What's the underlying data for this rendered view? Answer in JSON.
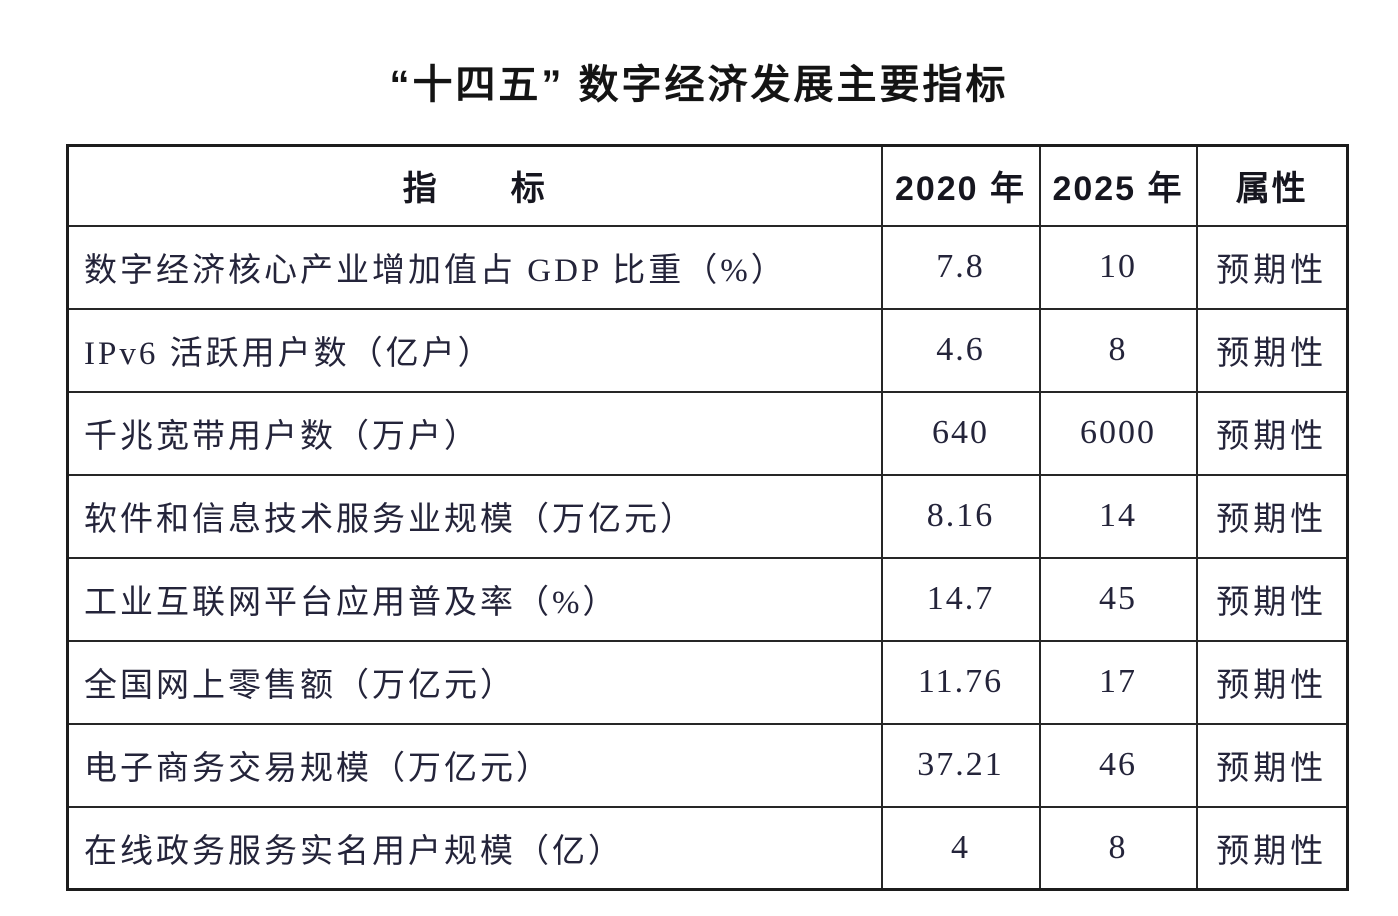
{
  "title": "“十四五” 数字经济发展主要指标",
  "table": {
    "headers": {
      "indicator": "指　　标",
      "y2020": "2020 年",
      "y2025": "2025 年",
      "attribute": "属性"
    },
    "rows": [
      {
        "indicator": "数字经济核心产业增加值占 GDP 比重（%）",
        "y2020": "7.8",
        "y2025": "10",
        "attribute": "预期性"
      },
      {
        "indicator": "IPv6 活跃用户数（亿户）",
        "y2020": "4.6",
        "y2025": "8",
        "attribute": "预期性"
      },
      {
        "indicator": "千兆宽带用户数（万户）",
        "y2020": "640",
        "y2025": "6000",
        "attribute": "预期性"
      },
      {
        "indicator": "软件和信息技术服务业规模（万亿元）",
        "y2020": "8.16",
        "y2025": "14",
        "attribute": "预期性"
      },
      {
        "indicator": "工业互联网平台应用普及率（%）",
        "y2020": "14.7",
        "y2025": "45",
        "attribute": "预期性"
      },
      {
        "indicator": "全国网上零售额（万亿元）",
        "y2020": "11.76",
        "y2025": "17",
        "attribute": "预期性"
      },
      {
        "indicator": "电子商务交易规模（万亿元）",
        "y2020": "37.21",
        "y2025": "46",
        "attribute": "预期性"
      },
      {
        "indicator": "在线政务服务实名用户规模（亿）",
        "y2020": "4",
        "y2025": "8",
        "attribute": "预期性"
      }
    ]
  },
  "colors": {
    "background": "#ffffff",
    "border": "#262626",
    "title_text": "#141414",
    "body_text": "#262636",
    "value_text": "#2e2e50"
  }
}
